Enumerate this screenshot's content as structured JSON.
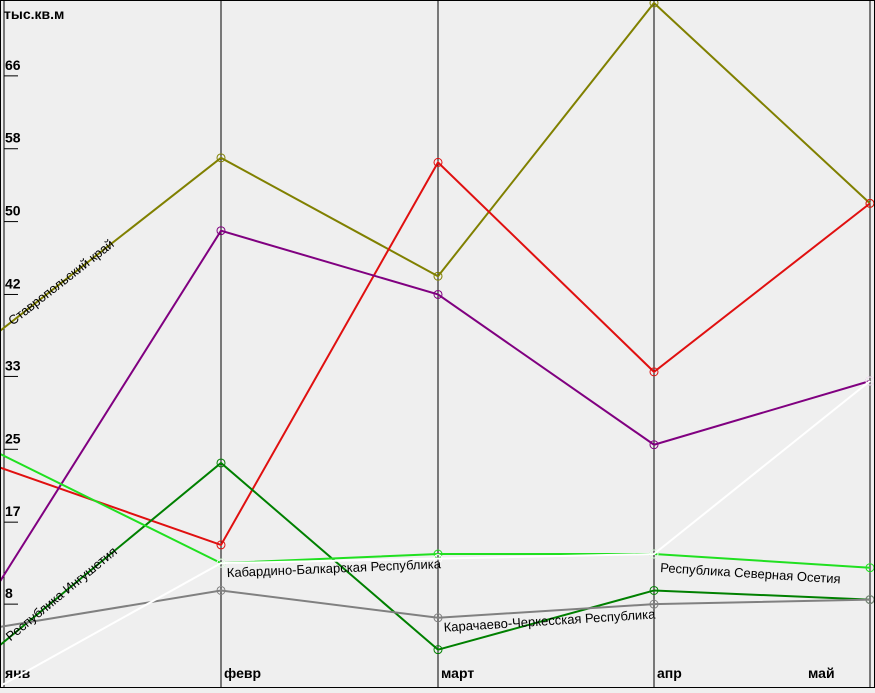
{
  "chart_data": {
    "type": "line",
    "unit_label": "тыс.кв.м",
    "categories": [
      "янв",
      "февр",
      "март",
      "апр",
      "май"
    ],
    "yticks": [
      8,
      17,
      25,
      33,
      42,
      50,
      58,
      66
    ],
    "ylim": [
      0,
      74
    ],
    "grid": false,
    "series": [
      {
        "name": "Ставропольский край",
        "color": "#808000",
        "values": [
          38,
          57,
          44,
          74,
          52
        ]
      },
      {
        "name": "",
        "color": "#e01010",
        "values": [
          23,
          14.5,
          56.5,
          33.5,
          52
        ]
      },
      {
        "name": "",
        "color": "#800080",
        "values": [
          10.5,
          49,
          42,
          25.5,
          32.5
        ]
      },
      {
        "name": "Республика Ингушетия",
        "color": "#008000",
        "values": [
          3.5,
          23.5,
          3,
          9.5,
          8.5
        ]
      },
      {
        "name": "Кабардино-Балкарская Республика",
        "color": "#20e020",
        "values": [
          24.5,
          12.5,
          13.5,
          13.5,
          12
        ]
      },
      {
        "name": "Карачаево-Черкесская Республика",
        "color": "#808080",
        "values": [
          5.5,
          9.5,
          6.5,
          8,
          8.5
        ]
      },
      {
        "name": "Республика Северная Осетия",
        "color": "#ffffff",
        "values": [
          -1,
          12.5,
          13,
          13.5,
          32.5
        ]
      }
    ]
  }
}
